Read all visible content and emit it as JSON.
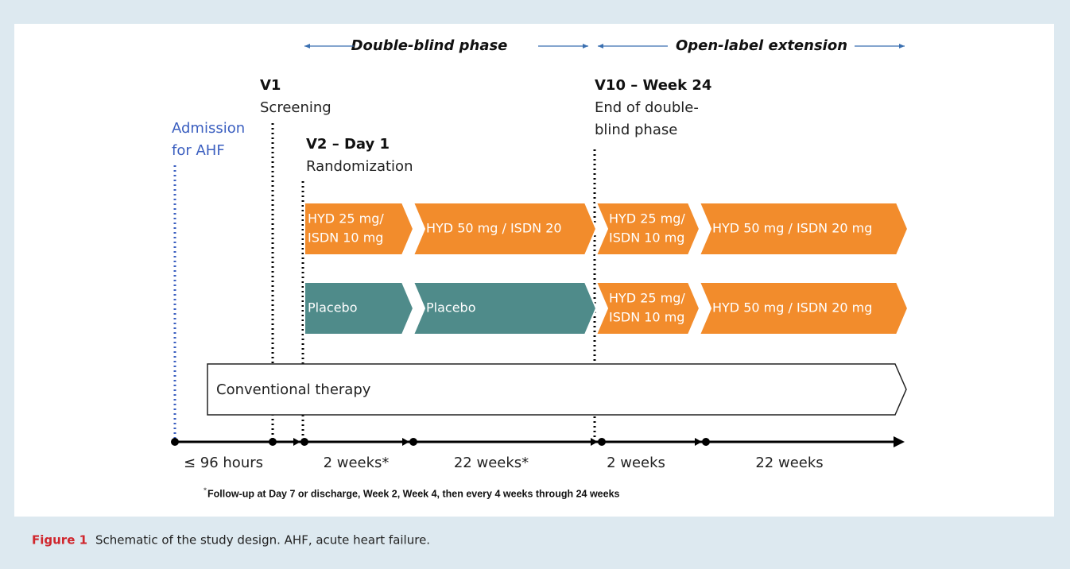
{
  "phases": [
    "Double-blind phase",
    "Open-label extension"
  ],
  "admission": [
    "Admission",
    "for AHF"
  ],
  "visits": [
    {
      "label": "V1",
      "lines": [
        "Screening"
      ]
    },
    {
      "label": "V2 – Day 1",
      "lines": [
        "Randomization"
      ]
    },
    {
      "label": "V10 – Week 24",
      "lines": [
        "End of double-",
        "blind phase"
      ]
    }
  ],
  "arms": [
    {
      "segments": [
        [
          "HYD 25 mg/",
          "ISDN 10 mg"
        ],
        [
          "HYD 50 mg / ISDN 20"
        ],
        [
          "HYD 25 mg/",
          "ISDN 10 mg"
        ],
        [
          "HYD 50 mg / ISDN 20 mg"
        ]
      ]
    },
    {
      "segments": [
        [
          "Placebo"
        ],
        [
          "Placebo"
        ],
        [
          "HYD 25 mg/",
          "ISDN 10 mg"
        ],
        [
          "HYD 50 mg / ISDN 20 mg"
        ]
      ]
    }
  ],
  "conventional": "Conventional therapy",
  "intervals": [
    "≤ 96 hours",
    "2 weeks*",
    "22 weeks*",
    "2 weeks",
    "22 weeks"
  ],
  "footnote": {
    "mark": "*",
    "text": "Follow-up at  Day 7 or discharge, Week 2, Week 4, then every 4 weeks through 24 weeks"
  },
  "caption": {
    "label": "Figure 1",
    "text": "Schematic of the study design. AHF, acute heart failure."
  }
}
